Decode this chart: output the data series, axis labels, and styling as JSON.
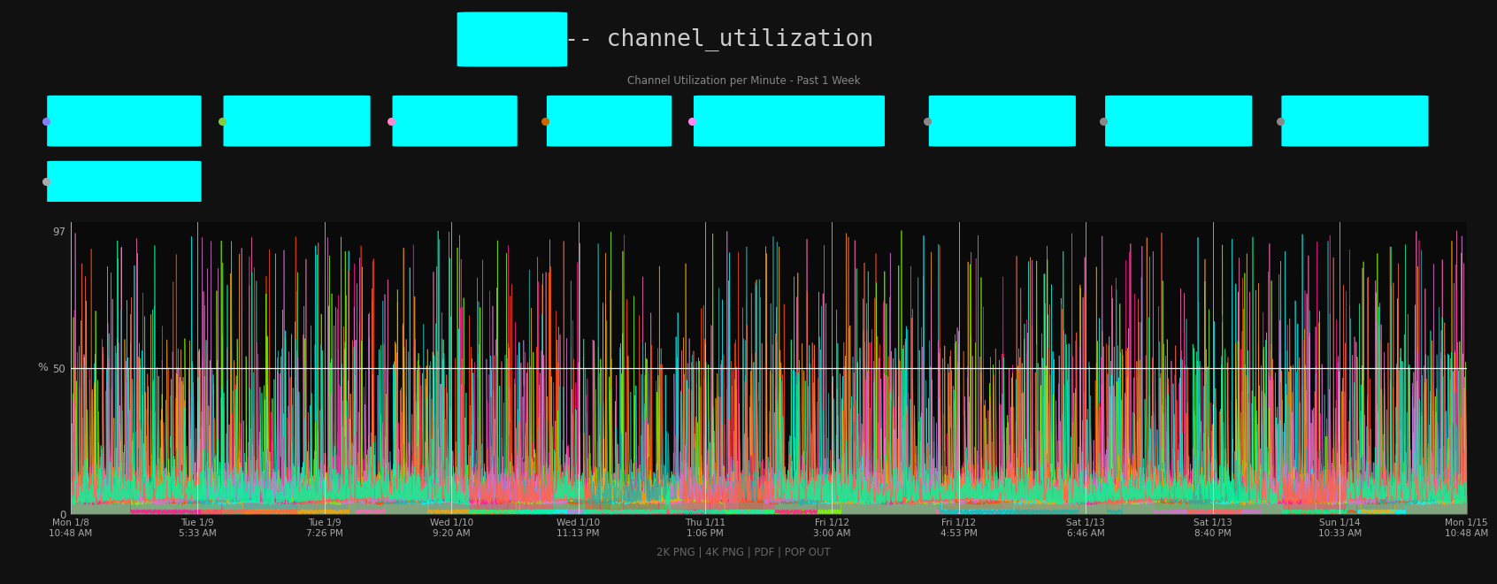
{
  "title": "-- channel_utilization",
  "subtitle": "Channel Utilization per Minute - Past 1 Week",
  "background_color": "#111111",
  "title_color": "#cccccc",
  "subtitle_color": "#888888",
  "ylabel": "%",
  "yticks": [
    0,
    50,
    97
  ],
  "footer_text": "2K PNG | 4K PNG | PDF | POP OUT",
  "footer_color": "#666666",
  "x_tick_labels": [
    "Mon 1/8\n10:48 AM",
    "Tue 1/9\n5:33 AM",
    "Tue 1/9\n7:26 PM",
    "Wed 1/10\n9:20 AM",
    "Wed 1/10\n11:13 PM",
    "Thu 1/11\n1:06 PM",
    "Fri 1/12\n3:00 AM",
    "Fri 1/12\n4:53 PM",
    "Sat 1/13\n6:46 AM",
    "Sat 1/13\n8:40 PM",
    "Sun 1/14\n10:33 AM",
    "Mon 1/15\n10:48 AM"
  ],
  "cyan_color": "#00ffff",
  "legend_row1_dots": [
    "#8080ff",
    "#80cc40",
    "#ff80cc",
    "#cc6600",
    "#ff80ee",
    "#888888",
    "#888888"
  ],
  "legend_row2_dots": [
    "#aaaaaa"
  ],
  "axis_label_color": "#aaaaaa",
  "ylim": [
    0,
    100
  ],
  "num_points": 10080,
  "line_colors": [
    "#ff69b4",
    "#00ffff",
    "#ff4500",
    "#7fff00",
    "#ff1493",
    "#ffa500",
    "#20b2aa",
    "#da70d6",
    "#ff6347",
    "#00fa9a"
  ],
  "fill_alpha": 0.35,
  "line_alpha": 0.8,
  "line_width": 0.5
}
